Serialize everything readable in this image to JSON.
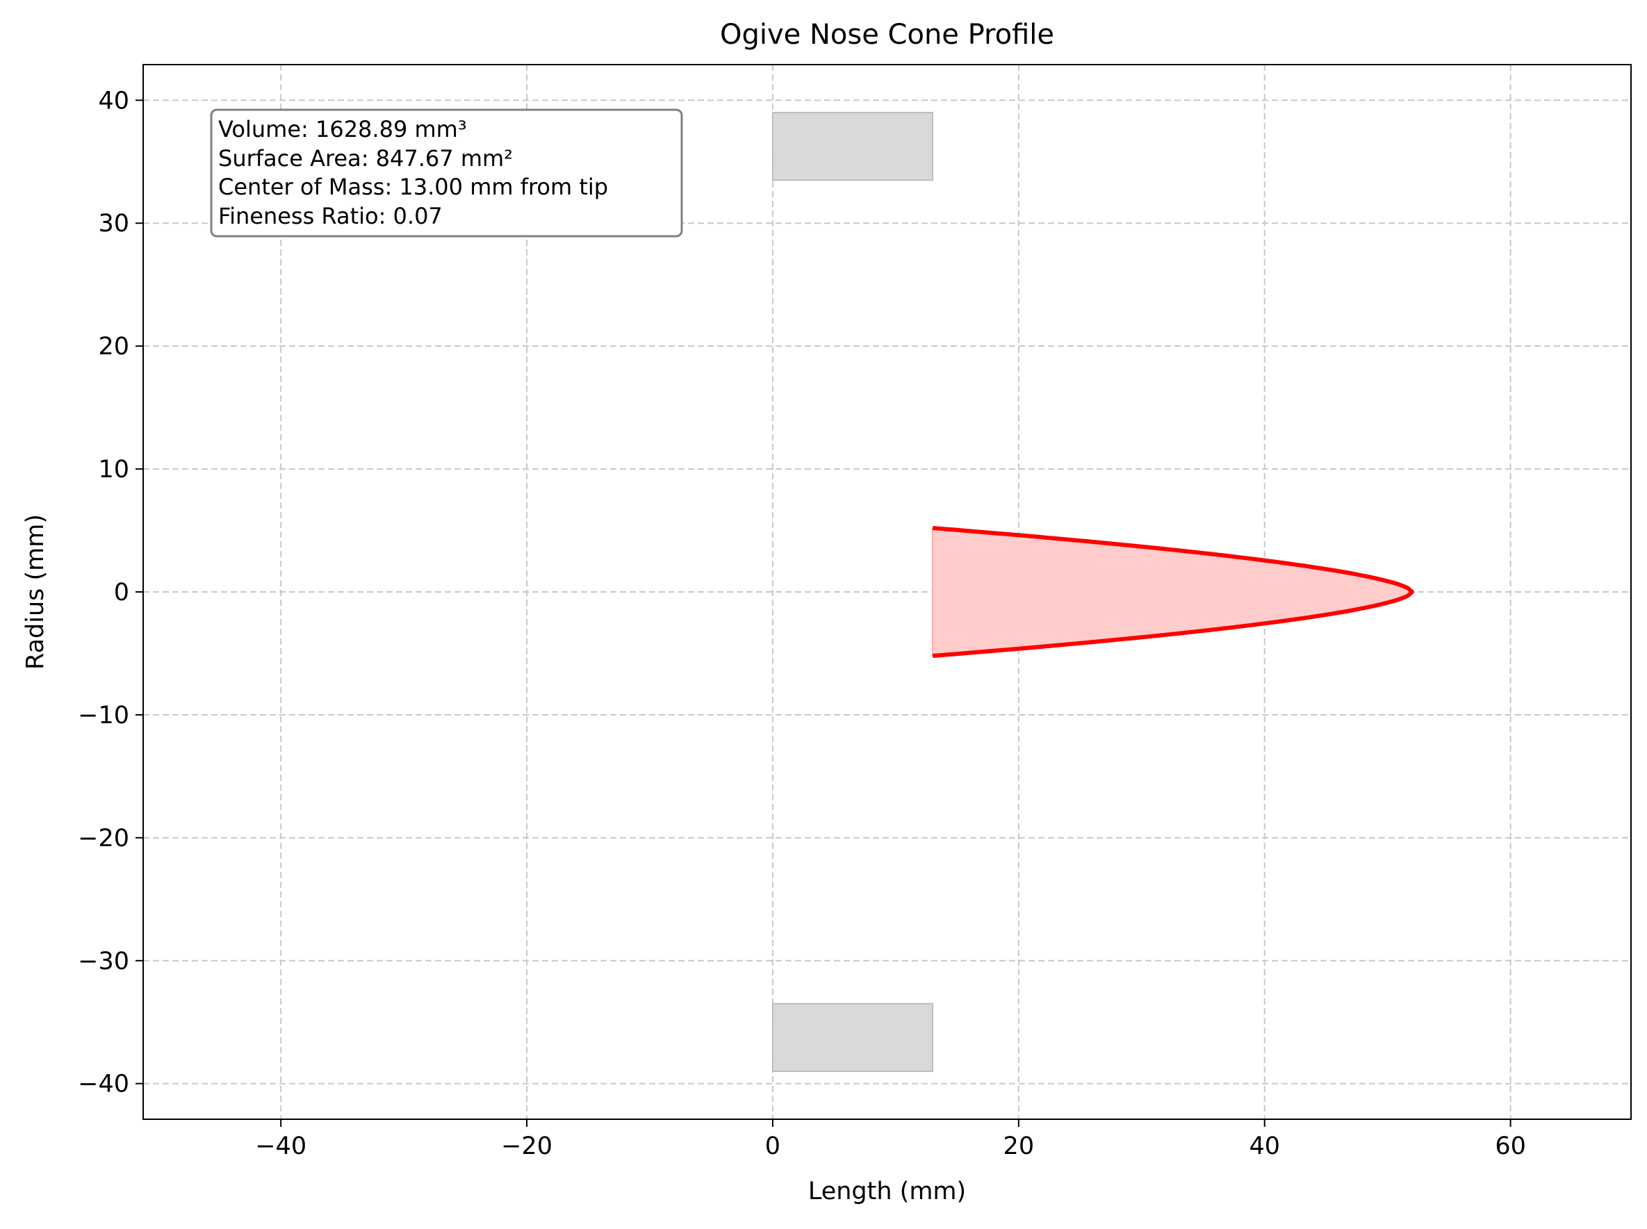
{
  "chart_data": {
    "type": "area",
    "title": "Ogive Nose Cone Profile",
    "xlabel": "Length (mm)",
    "ylabel": "Radius (mm)",
    "xlim": [
      -51.2,
      69.8
    ],
    "ylim": [
      -42.9,
      42.9
    ],
    "xticks": [
      -40,
      -20,
      0,
      20,
      40,
      60
    ],
    "yticks": [
      -40,
      -30,
      -20,
      -10,
      0,
      10,
      20,
      30,
      40
    ],
    "xtick_labels": [
      "−40",
      "−20",
      "0",
      "20",
      "40",
      "60"
    ],
    "ytick_labels": [
      "−40",
      "−30",
      "−20",
      "−10",
      "0",
      "10",
      "20",
      "30",
      "40"
    ],
    "grid": true,
    "grid_style": "dashed",
    "series": [
      {
        "kind": "profile-curve",
        "color": "#ff0000",
        "fill_color": "#ffcccc",
        "x_start": 13.0,
        "x_end": 52.0,
        "base_radius": 5.2,
        "shape_exponent": 0.6
      }
    ],
    "shoulder_blocks": [
      {
        "x": [
          0,
          13.0
        ],
        "y": [
          33.5,
          39.0
        ],
        "color": "#d9d9d9"
      },
      {
        "x": [
          0,
          13.0
        ],
        "y": [
          -39.0,
          -33.5
        ],
        "color": "#d9d9d9"
      }
    ],
    "annotation": {
      "lines": [
        "Volume: 1628.89 mm³",
        "Surface Area: 847.67 mm²",
        "Center of Mass: 13.00 mm from tip",
        "Fineness Ratio: 0.07"
      ],
      "placement": "top-left"
    }
  }
}
